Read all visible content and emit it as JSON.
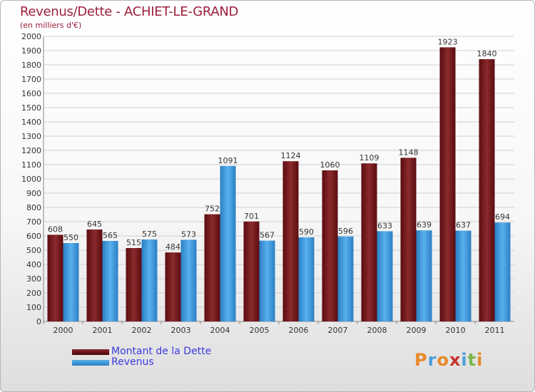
{
  "title": "Revenus/Dette - ACHIET-LE-GRAND",
  "subtitle": "(en milliers d'€)",
  "legend": {
    "debt_label": "Montant de la Dette",
    "revenue_label": "Revenus"
  },
  "logo": {
    "chars": [
      "P",
      "r",
      "o",
      "x",
      "i",
      "t",
      "i"
    ]
  },
  "colors": {
    "debt": "#7a2326",
    "revenue": "#3d99dc",
    "title": "#9b1f3c",
    "legend_text": "#3b3bdd"
  },
  "chart_data": {
    "type": "bar",
    "title": "Revenus/Dette - ACHIET-LE-GRAND",
    "ylabel": "(en milliers d'€)",
    "xlabel": "",
    "ylim": [
      0,
      2000
    ],
    "ytick_step": 100,
    "categories": [
      "2000",
      "2001",
      "2002",
      "2003",
      "2004",
      "2005",
      "2006",
      "2007",
      "2008",
      "2009",
      "2010",
      "2011"
    ],
    "series": [
      {
        "name": "Montant de la Dette",
        "values": [
          608,
          645,
          515,
          484,
          752,
          701,
          1124,
          1060,
          1109,
          1148,
          1923,
          1840
        ]
      },
      {
        "name": "Revenus",
        "values": [
          550,
          565,
          575,
          573,
          1091,
          567,
          590,
          596,
          633,
          639,
          637,
          694
        ]
      }
    ]
  }
}
